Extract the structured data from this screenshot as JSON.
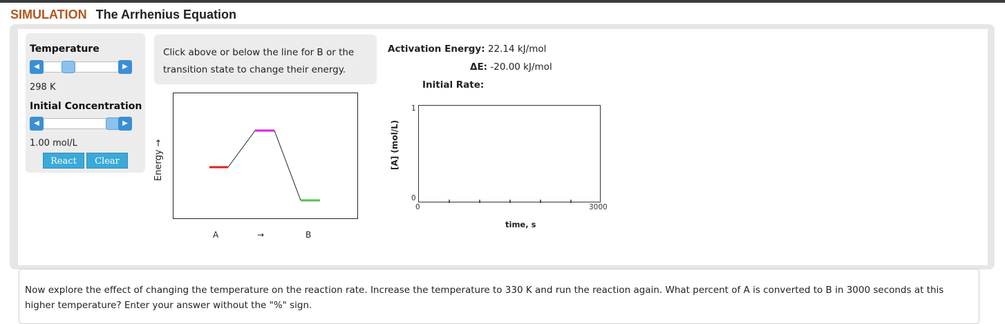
{
  "header": {
    "sim_label": "SIMULATION",
    "title": "The Arrhenius Equation"
  },
  "controls": {
    "temperature_label": "Temperature",
    "temperature_value": "298 K",
    "temperature_level": 0.3,
    "concentration_label": "Initial Concentration",
    "concentration_value": "1.00 mol/L",
    "concentration_level": 1.0,
    "react_label": "React",
    "clear_label": "Clear"
  },
  "hint": {
    "text": "Click above or below the line for B or the transition state to change their energy."
  },
  "energy_info": {
    "activation_label": "Activation Energy:",
    "activation_value": "22.14 kJ/mol",
    "delta_label": "ΔE:",
    "delta_value": "-20.00 kJ/mol",
    "rate_label": "Initial Rate:",
    "rate_value": ""
  },
  "energy_diagram": {
    "y_label": "Energy →",
    "x_labels": [
      "A",
      "→",
      "B"
    ],
    "colors": {
      "reactant": "#e02020",
      "transition": "#e020e0",
      "product": "#50c050"
    }
  },
  "chart_data": {
    "type": "line",
    "title": "",
    "xlabel": "time, s",
    "ylabel": "[A] (mol/L)",
    "xlim": [
      0,
      3000
    ],
    "ylim": [
      0,
      1
    ],
    "x_tick_labels": [
      "0",
      "3000"
    ],
    "y_tick_labels": [
      "0",
      "1"
    ],
    "series": []
  },
  "question": {
    "text": "Now explore the effect of changing the temperature on the reaction rate. Increase the temperature to 330 K and run the reaction again. What percent of A is converted to B in 3000 seconds at this higher temperature? Enter your answer without the \"%\" sign."
  }
}
